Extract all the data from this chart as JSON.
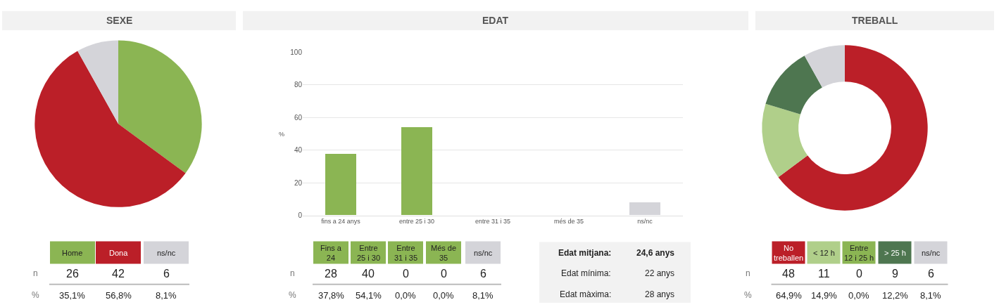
{
  "chart_data": [
    {
      "type": "pie",
      "title": "SEXE",
      "categories": [
        null,
        null,
        null
      ],
      "values": [
        35.1,
        56.8,
        8.1
      ],
      "colors": [
        "#8bb553",
        "#bb1f28",
        "#d4d4d9"
      ]
    },
    {
      "type": "other",
      "categories": [
        "Home",
        "Dona",
        "ns/nc"
      ],
      "colors": [
        "#8bb553",
        "#bb1f28",
        "#d4d4d9"
      ],
      "data_labels": true,
      "series": [
        {
          "name": "n",
          "values": [
            26,
            42,
            6
          ]
        },
        {
          "name": "%",
          "values": [
            35.1,
            56.8,
            8.1
          ],
          "value_labels": [
            "35,1%",
            "56,8%",
            "8,1%"
          ]
        }
      ]
    },
    {
      "type": "bar",
      "title": "EDAT",
      "ylabel": "%",
      "categories": [
        "fins a 24 anys",
        "entre 25 i 30",
        "entre 31 i 35",
        "més de 35",
        "ns/nc"
      ],
      "values": [
        37.8,
        54.1,
        0,
        0,
        8.1
      ],
      "colors": [
        "#8bb553",
        "#8bb553",
        "#8bb553",
        "#8bb553",
        "#d4d4d9"
      ],
      "ylim": [
        0,
        100
      ],
      "yticks": [
        0,
        20,
        40,
        60,
        80,
        100
      ],
      "grid": "y"
    },
    {
      "type": "other",
      "categories": [
        "Fins a 24",
        "Entre 25 i 30",
        "Entre 31 i 35",
        "Més de 35",
        "ns/nc"
      ],
      "colors": [
        "#8bb553",
        "#8bb553",
        "#8bb553",
        "#8bb553",
        "#d4d4d9"
      ],
      "data_labels": true,
      "series": [
        {
          "name": "n",
          "values": [
            28,
            40,
            0,
            0,
            6
          ]
        },
        {
          "name": "%",
          "values": [
            37.8,
            54.1,
            0.0,
            0.0,
            8.1
          ],
          "value_labels": [
            "37,8%",
            "54,1%",
            "0,0%",
            "0,0%",
            "8,1%"
          ]
        }
      ]
    },
    {
      "type": "other",
      "annotations": [
        "Edat mitjana:",
        "24,6 anys",
        "Edat mínima:",
        "22 anys",
        "Edat màxima:",
        "28 anys"
      ]
    },
    {
      "type": "donut",
      "title": "TREBALL",
      "categories": [
        null,
        null,
        null,
        null,
        null
      ],
      "values": [
        64.9,
        14.9,
        0.0,
        12.2,
        8.1
      ],
      "colors": [
        "#bb1f28",
        "#b0cf8a",
        "#8bb553",
        "#4e7650",
        "#d4d4d9"
      ]
    },
    {
      "type": "other",
      "categories": [
        "No treballen",
        "< 12 h",
        "Entre 12 i 25 h",
        "> 25 h",
        "ns/nc"
      ],
      "colors": [
        "#bb1f28",
        "#b0cf8a",
        "#8bb553",
        "#4e7650",
        "#d4d4d9"
      ],
      "data_labels": true,
      "series": [
        {
          "name": "n",
          "values": [
            48,
            11,
            0,
            9,
            6
          ]
        },
        {
          "name": "%",
          "values": [
            64.9,
            14.9,
            0.0,
            12.2,
            8.1
          ],
          "value_labels": [
            "64,9%",
            "14,9%",
            "0,0%",
            "12,2%",
            "8,1%"
          ]
        }
      ]
    }
  ]
}
